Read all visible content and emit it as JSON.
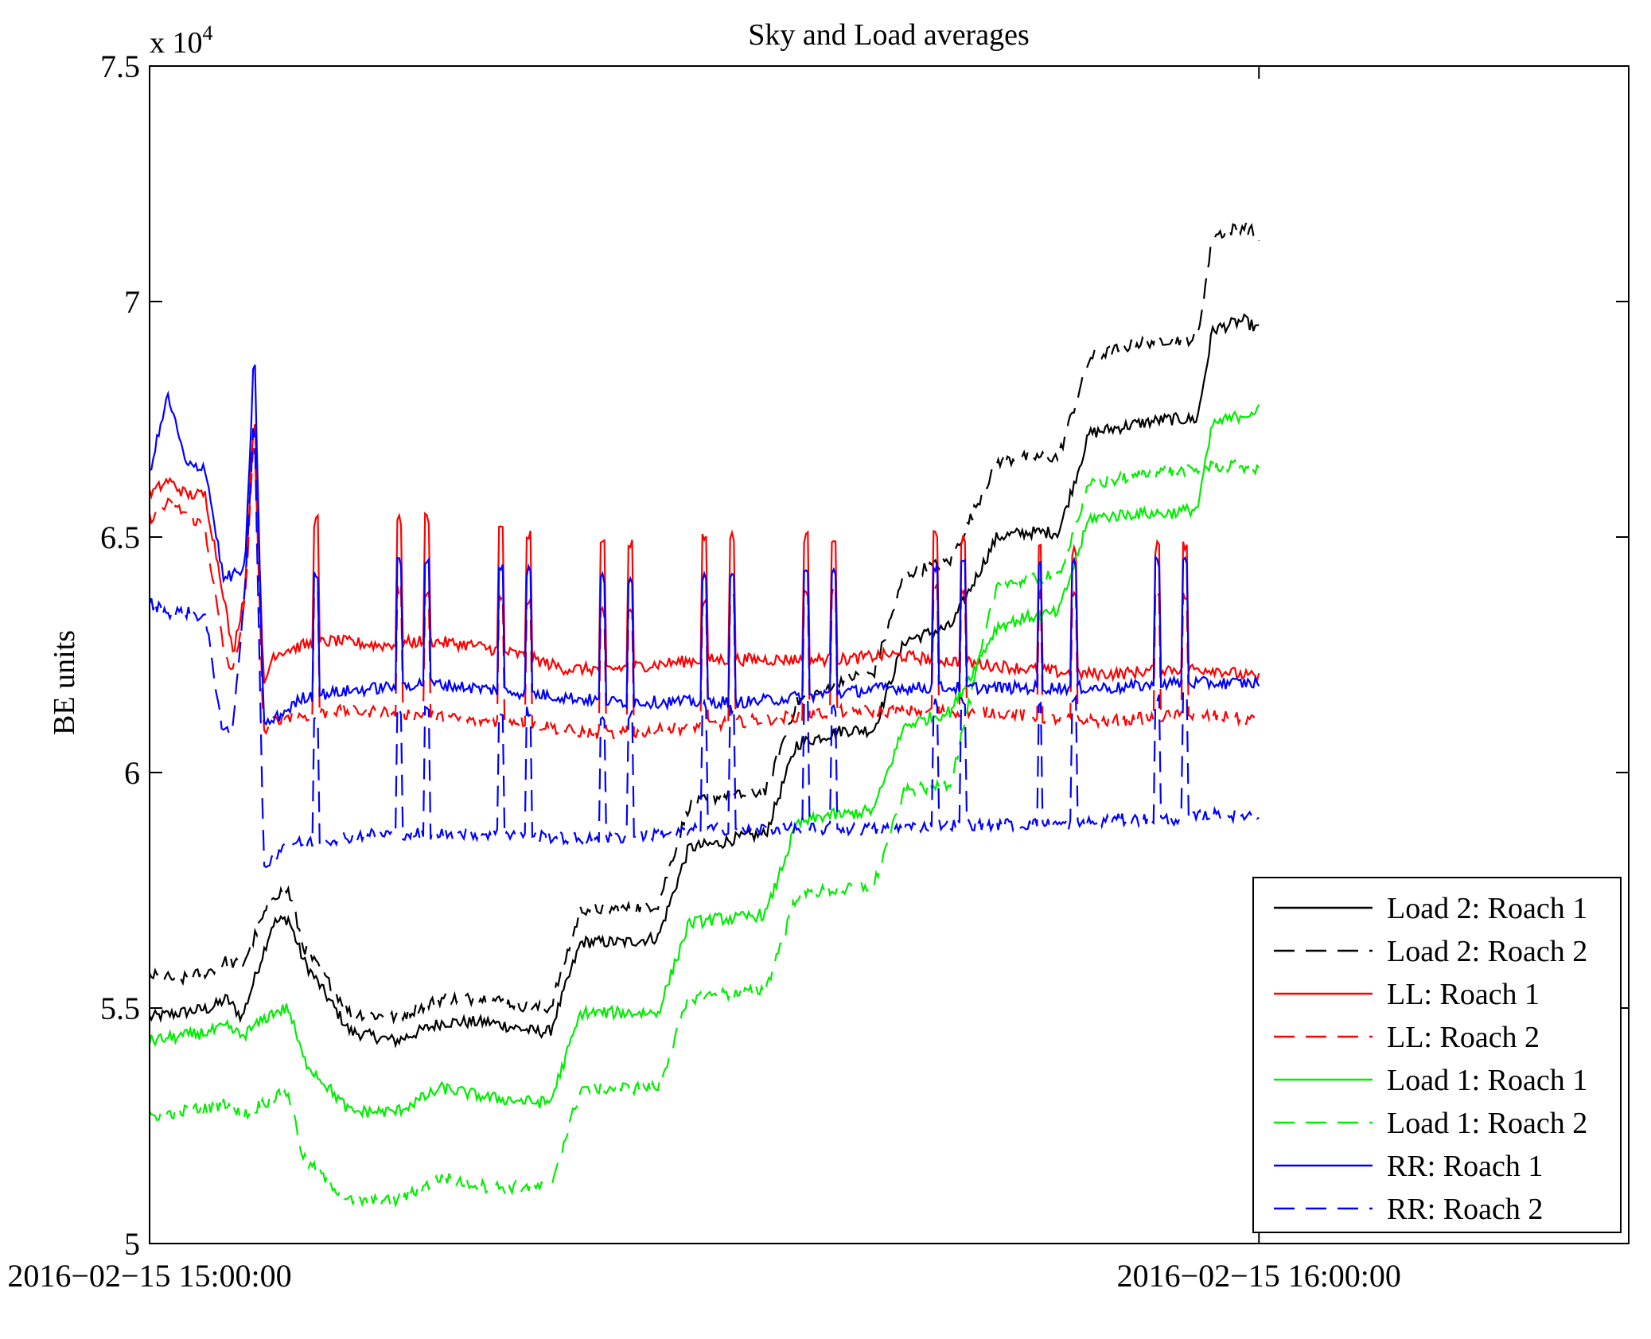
{
  "chart_data": {
    "type": "line",
    "title": "Sky and Load averages",
    "xlabel": "",
    "ylabel": "BE units",
    "y_exponent_label": "x 10",
    "y_exponent_power": "4",
    "xlim": [
      "2016-02-15 15:00:00",
      "2016-02-15 16:20:00"
    ],
    "ylim": [
      50000,
      75000
    ],
    "x_ticks": [
      {
        "time": "2016-02-15 15:00:00",
        "label": "2016−02−15 15:00:00"
      },
      {
        "time": "2016-02-15 16:00:00",
        "label": "2016−02−15 16:00:00"
      }
    ],
    "y_ticks": [
      {
        "value": 50000,
        "label": "5"
      },
      {
        "value": 55000,
        "label": "5.5"
      },
      {
        "value": 60000,
        "label": "6"
      },
      {
        "value": 65000,
        "label": "6.5"
      },
      {
        "value": 70000,
        "label": "7"
      },
      {
        "value": 75000,
        "label": "7.5"
      }
    ],
    "grid": false,
    "legend_position": "bottom-right",
    "series": [
      {
        "name": "Load 2: Roach 1",
        "color": "#000000",
        "dash": "solid",
        "x": [
          "15:00:00",
          "15:01:40",
          "15:03:20",
          "15:04:10",
          "15:05:00",
          "15:06:40",
          "15:07:30",
          "15:08:20",
          "15:10:50",
          "15:13:20",
          "15:15:50",
          "15:18:20",
          "15:20:50",
          "15:21:40",
          "15:23:20",
          "15:25:50",
          "15:27:30",
          "15:29:10",
          "15:30:50",
          "15:31:40",
          "15:33:20",
          "15:35:00",
          "15:36:40",
          "15:37:30",
          "15:39:10",
          "15:40:50",
          "15:42:30",
          "15:43:20",
          "15:45:50",
          "15:47:30",
          "15:49:10",
          "15:50:50",
          "15:53:20",
          "15:55:00",
          "15:56:40",
          "15:57:30",
          "15:59:10",
          "16:00:00"
        ],
        "y": [
          54800,
          54900,
          55000,
          55200,
          54800,
          56800,
          56900,
          56000,
          54500,
          54300,
          54700,
          54700,
          54500,
          54500,
          56400,
          56400,
          56500,
          58400,
          58500,
          58600,
          58700,
          60600,
          60800,
          60900,
          60900,
          62800,
          63000,
          63100,
          65000,
          65100,
          65100,
          67200,
          67400,
          67500,
          67500,
          69400,
          69600,
          69400
        ]
      },
      {
        "name": "Load 2: Roach 2",
        "color": "#000000",
        "dash": "dashed",
        "x": [
          "15:00:00",
          "15:01:40",
          "15:03:20",
          "15:04:10",
          "15:05:00",
          "15:06:40",
          "15:07:30",
          "15:08:20",
          "15:10:50",
          "15:13:20",
          "15:15:50",
          "15:18:20",
          "15:20:50",
          "15:21:40",
          "15:23:20",
          "15:25:50",
          "15:27:30",
          "15:29:10",
          "15:30:50",
          "15:31:40",
          "15:33:20",
          "15:35:00",
          "15:36:40",
          "15:37:30",
          "15:39:10",
          "15:40:50",
          "15:42:30",
          "15:43:20",
          "15:45:50",
          "15:47:30",
          "15:49:10",
          "15:50:50",
          "15:53:20",
          "15:55:00",
          "15:56:40",
          "15:57:30",
          "15:59:10",
          "16:00:00"
        ],
        "y": [
          55700,
          55600,
          55800,
          56000,
          55900,
          57400,
          57500,
          56300,
          54900,
          54800,
          55200,
          55200,
          55000,
          55000,
          57100,
          57100,
          57200,
          59300,
          59500,
          59500,
          59600,
          61500,
          61800,
          62000,
          62100,
          64200,
          64400,
          64500,
          66600,
          66700,
          66700,
          68800,
          69100,
          69200,
          69200,
          71400,
          71600,
          71400
        ]
      },
      {
        "name": "LL: Roach 1",
        "color": "#ff0000",
        "dash": "solid",
        "x": [
          "15:00:00",
          "15:01:00",
          "15:02:00",
          "15:03:00",
          "15:04:00",
          "15:04:30",
          "15:05:10",
          "15:05:40",
          "15:06:10",
          "15:06:40",
          "15:07:20",
          "15:08:20",
          "15:10:00",
          "15:12:30",
          "15:15:00",
          "15:17:30",
          "15:20:00",
          "15:22:30",
          "15:25:00",
          "15:27:30",
          "15:30:00",
          "15:32:30",
          "15:35:00",
          "15:37:30",
          "15:40:00",
          "15:42:30",
          "15:45:00",
          "15:47:30",
          "15:50:00",
          "15:52:30",
          "15:55:00",
          "15:57:30",
          "16:00:00"
        ],
        "y": [
          65900,
          66200,
          65900,
          65900,
          63800,
          62500,
          63900,
          67800,
          61800,
          62500,
          62600,
          62700,
          62800,
          62700,
          62800,
          62700,
          62500,
          62200,
          62200,
          62300,
          62400,
          62400,
          62400,
          62400,
          62500,
          62400,
          62300,
          62200,
          62100,
          62100,
          62200,
          62200,
          62000
        ]
      },
      {
        "name": "LL: Roach 2",
        "color": "#ff0000",
        "dash": "dashed",
        "x": [
          "15:00:00",
          "15:01:00",
          "15:02:00",
          "15:03:00",
          "15:04:00",
          "15:04:30",
          "15:05:10",
          "15:05:40",
          "15:06:10",
          "15:06:40",
          "15:07:20",
          "15:08:20",
          "15:10:00",
          "15:12:30",
          "15:15:00",
          "15:17:30",
          "15:20:00",
          "15:22:30",
          "15:25:00",
          "15:27:30",
          "15:30:00",
          "15:32:30",
          "15:35:00",
          "15:37:30",
          "15:40:00",
          "15:42:30",
          "15:45:00",
          "15:47:30",
          "15:50:00",
          "15:52:30",
          "15:55:00",
          "15:57:30",
          "16:00:00"
        ],
        "y": [
          65400,
          65700,
          65500,
          65200,
          62600,
          62100,
          63600,
          67300,
          60800,
          61100,
          61200,
          61200,
          61300,
          61300,
          61200,
          61100,
          61100,
          60900,
          60800,
          60900,
          61000,
          61100,
          61200,
          61300,
          61300,
          61300,
          61300,
          61200,
          61100,
          61100,
          61200,
          61200,
          61100
        ]
      },
      {
        "name": "Load 1: Roach 1",
        "color": "#00ee00",
        "dash": "solid",
        "x": [
          "15:00:00",
          "15:01:40",
          "15:03:20",
          "15:04:10",
          "15:05:00",
          "15:06:40",
          "15:07:30",
          "15:08:20",
          "15:10:50",
          "15:13:20",
          "15:15:50",
          "15:18:20",
          "15:20:50",
          "15:21:40",
          "15:23:20",
          "15:25:50",
          "15:27:30",
          "15:29:10",
          "15:30:50",
          "15:31:40",
          "15:33:20",
          "15:35:00",
          "15:36:40",
          "15:37:30",
          "15:39:10",
          "15:40:50",
          "15:42:30",
          "15:43:20",
          "15:45:50",
          "15:47:30",
          "15:49:10",
          "15:50:50",
          "15:53:20",
          "15:55:00",
          "15:56:40",
          "15:57:30",
          "15:59:10",
          "16:00:00"
        ],
        "y": [
          54300,
          54400,
          54500,
          54600,
          54400,
          54900,
          55000,
          53900,
          52800,
          52800,
          53300,
          53100,
          53000,
          53000,
          54900,
          54900,
          54900,
          56800,
          56900,
          56900,
          57000,
          58900,
          59100,
          59100,
          59200,
          61000,
          61200,
          61300,
          63100,
          63300,
          63400,
          65400,
          65500,
          65500,
          65600,
          67400,
          67600,
          67700
        ]
      },
      {
        "name": "Load 1: Roach 2",
        "color": "#00ee00",
        "dash": "dashed",
        "x": [
          "15:00:00",
          "15:01:40",
          "15:03:20",
          "15:04:10",
          "15:05:00",
          "15:06:40",
          "15:07:30",
          "15:08:20",
          "15:10:50",
          "15:13:20",
          "15:15:50",
          "15:18:20",
          "15:20:50",
          "15:21:40",
          "15:23:20",
          "15:25:50",
          "15:27:30",
          "15:29:10",
          "15:30:50",
          "15:31:40",
          "15:33:20",
          "15:35:00",
          "15:36:40",
          "15:37:30",
          "15:39:10",
          "15:40:50",
          "15:42:30",
          "15:43:20",
          "15:45:50",
          "15:47:30",
          "15:49:10",
          "15:50:50",
          "15:53:20",
          "15:55:00",
          "15:56:40",
          "15:57:30",
          "15:59:10",
          "16:00:00"
        ],
        "y": [
          52700,
          52800,
          52900,
          53000,
          52700,
          53100,
          53200,
          51800,
          50900,
          50900,
          51400,
          51200,
          51200,
          51200,
          53300,
          53300,
          53300,
          55200,
          55300,
          55300,
          55400,
          57400,
          57500,
          57500,
          57600,
          59600,
          59700,
          59800,
          64000,
          64100,
          64200,
          66100,
          66300,
          66400,
          66400,
          66500,
          66500,
          66400
        ]
      },
      {
        "name": "RR: Roach 1",
        "color": "#0000ff",
        "dash": "solid",
        "x": [
          "15:00:00",
          "15:01:00",
          "15:02:00",
          "15:03:00",
          "15:04:00",
          "15:04:30",
          "15:05:10",
          "15:05:40",
          "15:06:10",
          "15:06:40",
          "15:07:20",
          "15:08:20",
          "15:10:00",
          "15:12:30",
          "15:15:00",
          "15:17:30",
          "15:20:00",
          "15:22:30",
          "15:25:00",
          "15:27:30",
          "15:30:00",
          "15:32:30",
          "15:35:00",
          "15:37:30",
          "15:40:00",
          "15:42:30",
          "15:45:00",
          "15:47:30",
          "15:50:00",
          "15:52:30",
          "15:55:00",
          "15:57:30",
          "16:00:00"
        ],
        "y": [
          66400,
          68000,
          66500,
          66500,
          64100,
          64200,
          64300,
          69100,
          61000,
          61100,
          61300,
          61600,
          61700,
          61800,
          61900,
          61800,
          61700,
          61600,
          61500,
          61500,
          61500,
          61500,
          61600,
          61700,
          61800,
          61800,
          61800,
          61800,
          61800,
          61800,
          61900,
          61900,
          61900
        ]
      },
      {
        "name": "RR: Roach 2",
        "color": "#0000ff",
        "dash": "dashed",
        "x": [
          "15:00:00",
          "15:01:00",
          "15:02:00",
          "15:03:00",
          "15:04:00",
          "15:04:30",
          "15:05:10",
          "15:05:40",
          "15:06:10",
          "15:06:40",
          "15:07:20",
          "15:08:20",
          "15:10:00",
          "15:12:30",
          "15:15:00",
          "15:17:30",
          "15:20:00",
          "15:22:30",
          "15:25:00",
          "15:27:30",
          "15:30:00",
          "15:32:30",
          "15:35:00",
          "15:37:30",
          "15:40:00",
          "15:42:30",
          "15:45:00",
          "15:47:30",
          "15:50:00",
          "15:52:30",
          "15:55:00",
          "15:57:30",
          "16:00:00"
        ],
        "y": [
          63600,
          63400,
          63400,
          63300,
          60800,
          60900,
          64000,
          67700,
          58000,
          58200,
          58500,
          58500,
          58600,
          58700,
          58700,
          58700,
          58700,
          58600,
          58600,
          58700,
          58800,
          58800,
          58800,
          58800,
          58800,
          58900,
          58900,
          58900,
          58900,
          59000,
          59000,
          59100,
          59100
        ]
      }
    ],
    "spikes": {
      "times": [
        "15:09:00",
        "15:13:30",
        "15:15:00",
        "15:19:00",
        "15:20:30",
        "15:24:30",
        "15:26:00",
        "15:30:00",
        "15:31:30",
        "15:35:30",
        "15:37:00",
        "15:42:30",
        "15:44:00",
        "15:48:10",
        "15:50:00",
        "15:54:30",
        "15:56:00"
      ],
      "applies_to": [
        "LL: Roach 1",
        "LL: Roach 2",
        "RR: Roach 1",
        "RR: Roach 2"
      ],
      "peak_offset": 2600
    }
  }
}
